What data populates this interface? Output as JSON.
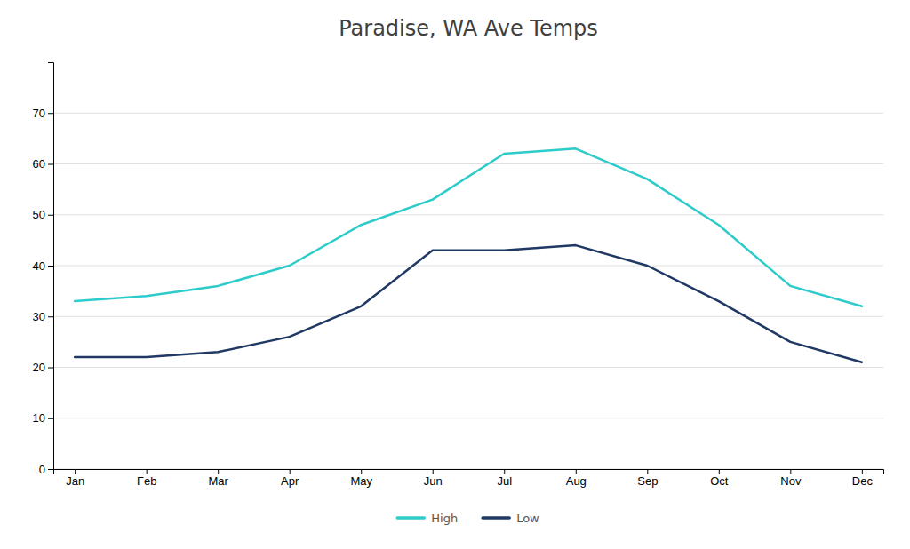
{
  "chart_data": {
    "type": "line",
    "title": "Paradise, WA Ave Temps",
    "categories": [
      "Jan",
      "Feb",
      "Mar",
      "Apr",
      "May",
      "Jun",
      "Jul",
      "Aug",
      "Sep",
      "Oct",
      "Nov",
      "Dec"
    ],
    "series": [
      {
        "name": "High",
        "color": "#2ECBCB",
        "values": [
          33,
          34,
          36,
          40,
          48,
          53,
          62,
          63,
          57,
          48,
          36,
          32
        ]
      },
      {
        "name": "Low",
        "color": "#1F3864",
        "values": [
          22,
          22,
          23,
          26,
          32,
          43,
          43,
          44,
          40,
          33,
          25,
          21
        ]
      }
    ],
    "ylim": [
      0,
      80
    ],
    "yticks": [
      0,
      10,
      20,
      30,
      40,
      50,
      60,
      70
    ],
    "grid": true,
    "legend": "bottom"
  }
}
